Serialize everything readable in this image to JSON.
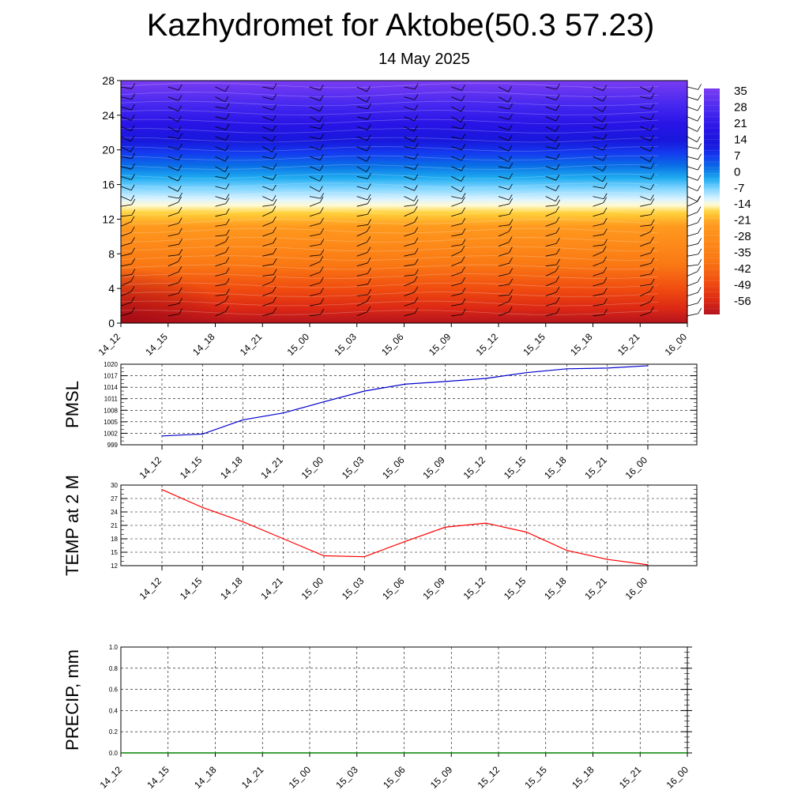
{
  "title": "Kazhydromet for Aktobe(50.3 57.23)",
  "subtitle": "14 May 2025",
  "chart_data": [
    {
      "type": "heatmap",
      "name": "cross-section",
      "xlabel": "",
      "ylabel": "",
      "time_labels": [
        "14_12",
        "14_15",
        "14_18",
        "14_21",
        "15_00",
        "15_03",
        "15_06",
        "15_09",
        "15_12",
        "15_15",
        "15_18",
        "15_21",
        "16_00"
      ],
      "yticks": [
        0,
        4,
        8,
        12,
        16,
        20,
        24,
        28
      ],
      "ylim": [
        0,
        28
      ],
      "colorbar": {
        "labels": [
          "35",
          "28",
          "21",
          "14",
          "7",
          "0",
          "-7",
          "-14",
          "-21",
          "-28",
          "-35",
          "-42",
          "-49",
          "-56"
        ]
      },
      "wind_barbs": true
    },
    {
      "type": "line",
      "ylabel": "PMSL",
      "x": [
        "14_12",
        "14_15",
        "14_18",
        "14_21",
        "15_00",
        "15_03",
        "15_06",
        "15_09",
        "15_12",
        "15_15",
        "15_18",
        "15_21",
        "16_00"
      ],
      "values": [
        1001.3,
        1001.8,
        1005.5,
        1007.3,
        1010.2,
        1013.0,
        1014.8,
        1015.5,
        1016.3,
        1017.8,
        1018.8,
        1019.0,
        1019.6
      ],
      "ylim": [
        999,
        1020
      ],
      "yticks": [
        999,
        1002,
        1005,
        1008,
        1011,
        1014,
        1017,
        1020
      ],
      "color": "#0000cc",
      "grid": true
    },
    {
      "type": "line",
      "ylabel": "TEMP at 2 M",
      "x": [
        "14_12",
        "14_15",
        "14_18",
        "14_21",
        "15_00",
        "15_03",
        "15_06",
        "15_09",
        "15_12",
        "15_15",
        "15_18",
        "15_21",
        "16_00"
      ],
      "values": [
        29.0,
        25.0,
        21.8,
        18.0,
        14.2,
        14.0,
        17.4,
        20.6,
        21.5,
        19.5,
        15.4,
        13.4,
        12.2
      ],
      "ylim": [
        12,
        30
      ],
      "yticks": [
        12,
        15,
        18,
        21,
        24,
        27,
        30
      ],
      "color": "#ff0000",
      "grid": true
    },
    {
      "type": "line",
      "ylabel": "PRECIP, mm",
      "x": [
        "14_12",
        "14_15",
        "14_18",
        "14_21",
        "15_00",
        "15_03",
        "15_06",
        "15_09",
        "15_12",
        "15_15",
        "15_18",
        "15_21",
        "16_00"
      ],
      "values": [
        0,
        0,
        0,
        0,
        0,
        0,
        0,
        0,
        0,
        0,
        0,
        0,
        0
      ],
      "ylim": [
        0.0,
        1.0
      ],
      "yticks": [
        "0.0",
        "0.2",
        "0.4",
        "0.6",
        "0.8",
        "1.0"
      ],
      "color": "#008000",
      "grid": true
    }
  ]
}
